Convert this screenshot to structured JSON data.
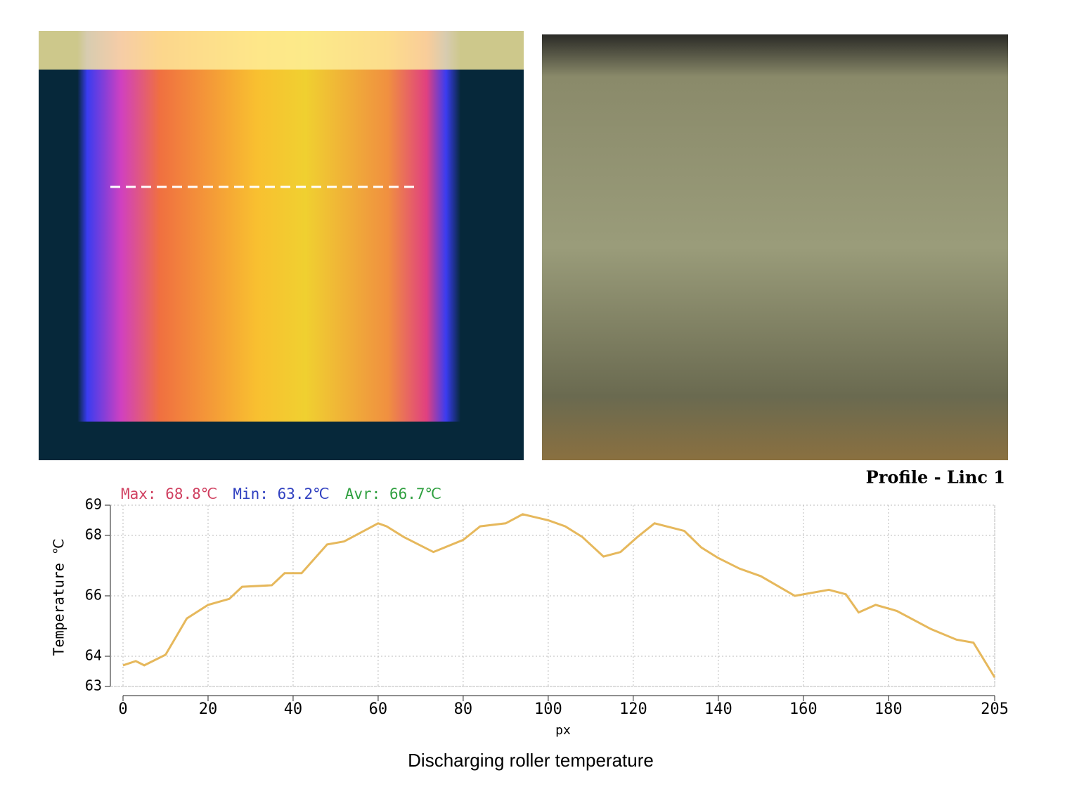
{
  "chart_data": {
    "type": "line",
    "title": "Profile - Linc 1",
    "stats": [
      {
        "text": "Max: 68.8℃",
        "color": "#d04060"
      },
      {
        "text": "Min: 63.2℃",
        "color": "#3040c0"
      },
      {
        "text": "Avr: 66.7℃",
        "color": "#30a040"
      }
    ],
    "y_label": "Temperature ℃",
    "x_label": "px",
    "caption": "Discharging roller temperature",
    "x": [
      0,
      3,
      5,
      10,
      15,
      20,
      25,
      28,
      35,
      38,
      42,
      48,
      52,
      56,
      60,
      62,
      66,
      73,
      80,
      84,
      90,
      94,
      100,
      104,
      108,
      113,
      117,
      121,
      125,
      132,
      136,
      140,
      145,
      150,
      158,
      166,
      170,
      173,
      177,
      182,
      190,
      196,
      200,
      205
    ],
    "values": [
      63.7,
      63.84,
      63.7,
      64.05,
      65.25,
      65.7,
      65.9,
      66.3,
      66.35,
      66.75,
      66.75,
      67.7,
      67.8,
      68.1,
      68.4,
      68.3,
      67.95,
      67.45,
      67.85,
      68.3,
      68.4,
      68.7,
      68.5,
      68.3,
      67.95,
      67.3,
      67.45,
      67.95,
      68.4,
      68.15,
      67.6,
      67.25,
      66.9,
      66.65,
      66.0,
      66.2,
      66.05,
      65.45,
      65.7,
      65.5,
      64.9,
      64.55,
      64.45,
      63.3
    ],
    "color": "#e6b85c",
    "xlim": [
      0,
      205
    ],
    "xticks": [
      0,
      20,
      40,
      60,
      80,
      100,
      120,
      140,
      160,
      180,
      205
    ],
    "ylim": [
      63,
      69
    ],
    "yticks": [
      63,
      64,
      66,
      68,
      69
    ],
    "grid": true
  }
}
